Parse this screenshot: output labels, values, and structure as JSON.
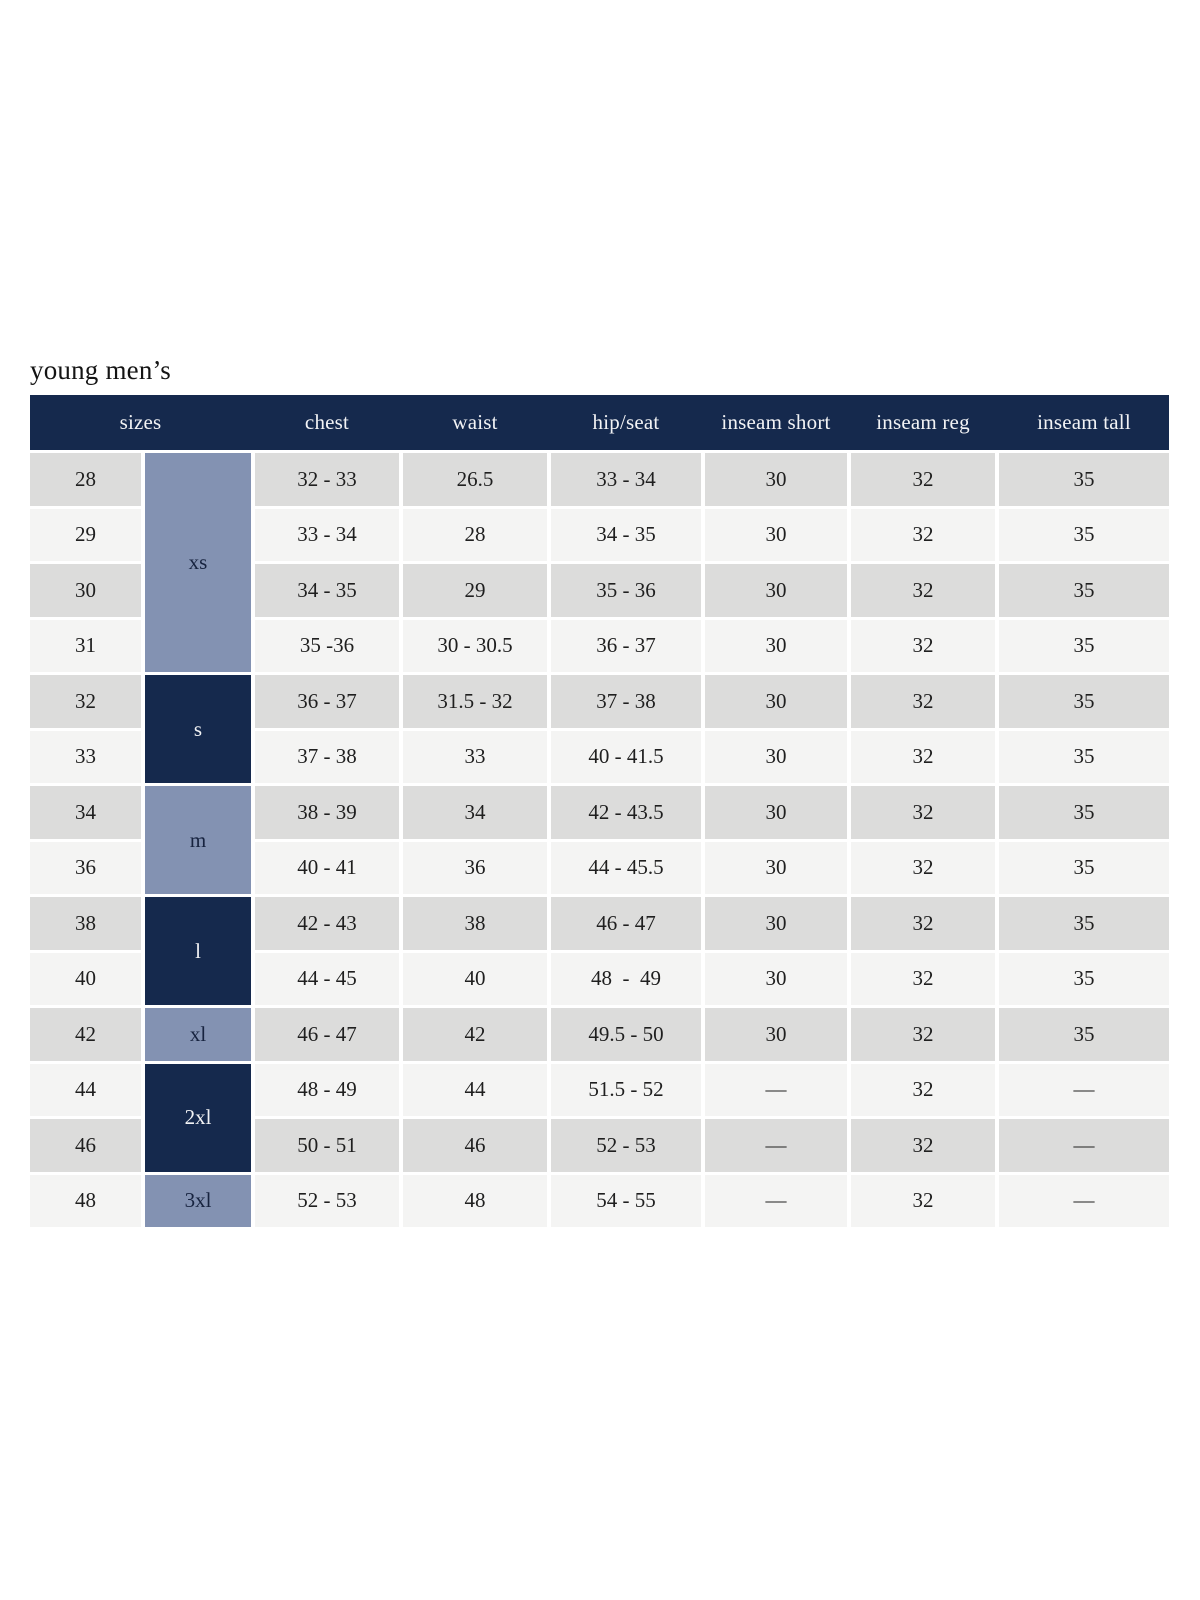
{
  "title": "young men’s",
  "columns": [
    "sizes",
    "chest",
    "waist",
    "hip/seat",
    "inseam short",
    "inseam reg",
    "inseam tall"
  ],
  "rows": [
    {
      "size": "28",
      "chest": "32 - 33",
      "waist": "26.5",
      "hip_seat": "33 - 34",
      "inseam_short": "30",
      "inseam_reg": "32",
      "inseam_tall": "35"
    },
    {
      "size": "29",
      "chest": "33 - 34",
      "waist": "28",
      "hip_seat": "34 - 35",
      "inseam_short": "30",
      "inseam_reg": "32",
      "inseam_tall": "35"
    },
    {
      "size": "30",
      "chest": "34 - 35",
      "waist": "29",
      "hip_seat": "35 - 36",
      "inseam_short": "30",
      "inseam_reg": "32",
      "inseam_tall": "35"
    },
    {
      "size": "31",
      "chest": "35 -36",
      "waist": "30 - 30.5",
      "hip_seat": "36 - 37",
      "inseam_short": "30",
      "inseam_reg": "32",
      "inseam_tall": "35"
    },
    {
      "size": "32",
      "chest": "36 - 37",
      "waist": "31.5 - 32",
      "hip_seat": "37 - 38",
      "inseam_short": "30",
      "inseam_reg": "32",
      "inseam_tall": "35"
    },
    {
      "size": "33",
      "chest": "37 - 38",
      "waist": "33",
      "hip_seat": "40 - 41.5",
      "inseam_short": "30",
      "inseam_reg": "32",
      "inseam_tall": "35"
    },
    {
      "size": "34",
      "chest": "38 - 39",
      "waist": "34",
      "hip_seat": "42 - 43.5",
      "inseam_short": "30",
      "inseam_reg": "32",
      "inseam_tall": "35"
    },
    {
      "size": "36",
      "chest": "40 - 41",
      "waist": "36",
      "hip_seat": "44 - 45.5",
      "inseam_short": "30",
      "inseam_reg": "32",
      "inseam_tall": "35"
    },
    {
      "size": "38",
      "chest": "42 - 43",
      "waist": "38",
      "hip_seat": "46 - 47",
      "inseam_short": "30",
      "inseam_reg": "32",
      "inseam_tall": "35"
    },
    {
      "size": "40",
      "chest": "44 - 45",
      "waist": "40",
      "hip_seat": "48  -  49",
      "inseam_short": "30",
      "inseam_reg": "32",
      "inseam_tall": "35"
    },
    {
      "size": "42",
      "chest": "46 - 47",
      "waist": "42",
      "hip_seat": "49.5 - 50",
      "inseam_short": "30",
      "inseam_reg": "32",
      "inseam_tall": "35"
    },
    {
      "size": "44",
      "chest": "48 - 49",
      "waist": "44",
      "hip_seat": "51.5 - 52",
      "inseam_short": "—",
      "inseam_reg": "32",
      "inseam_tall": "—"
    },
    {
      "size": "46",
      "chest": "50 - 51",
      "waist": "46",
      "hip_seat": "52 - 53",
      "inseam_short": "—",
      "inseam_reg": "32",
      "inseam_tall": "—"
    },
    {
      "size": "48",
      "chest": "52 - 53",
      "waist": "48",
      "hip_seat": "54 - 55",
      "inseam_short": "—",
      "inseam_reg": "32",
      "inseam_tall": "—"
    }
  ],
  "groups": [
    {
      "label": "xs",
      "start": 0,
      "span": 4,
      "style": "slate"
    },
    {
      "label": "s",
      "start": 4,
      "span": 2,
      "style": "navy"
    },
    {
      "label": "m",
      "start": 6,
      "span": 2,
      "style": "slate"
    },
    {
      "label": "l",
      "start": 8,
      "span": 2,
      "style": "navy"
    },
    {
      "label": "xl",
      "start": 10,
      "span": 1,
      "style": "slate"
    },
    {
      "label": "2xl",
      "start": 11,
      "span": 2,
      "style": "navy"
    },
    {
      "label": "3xl",
      "start": 13,
      "span": 1,
      "style": "slate"
    }
  ],
  "colors": {
    "navy": "#15294d",
    "slate": "#8392b2",
    "row_even": "#dcdcdb",
    "row_odd": "#f4f4f3",
    "header_text": "#f2f3f5",
    "body_text": "#1f1f1f"
  }
}
